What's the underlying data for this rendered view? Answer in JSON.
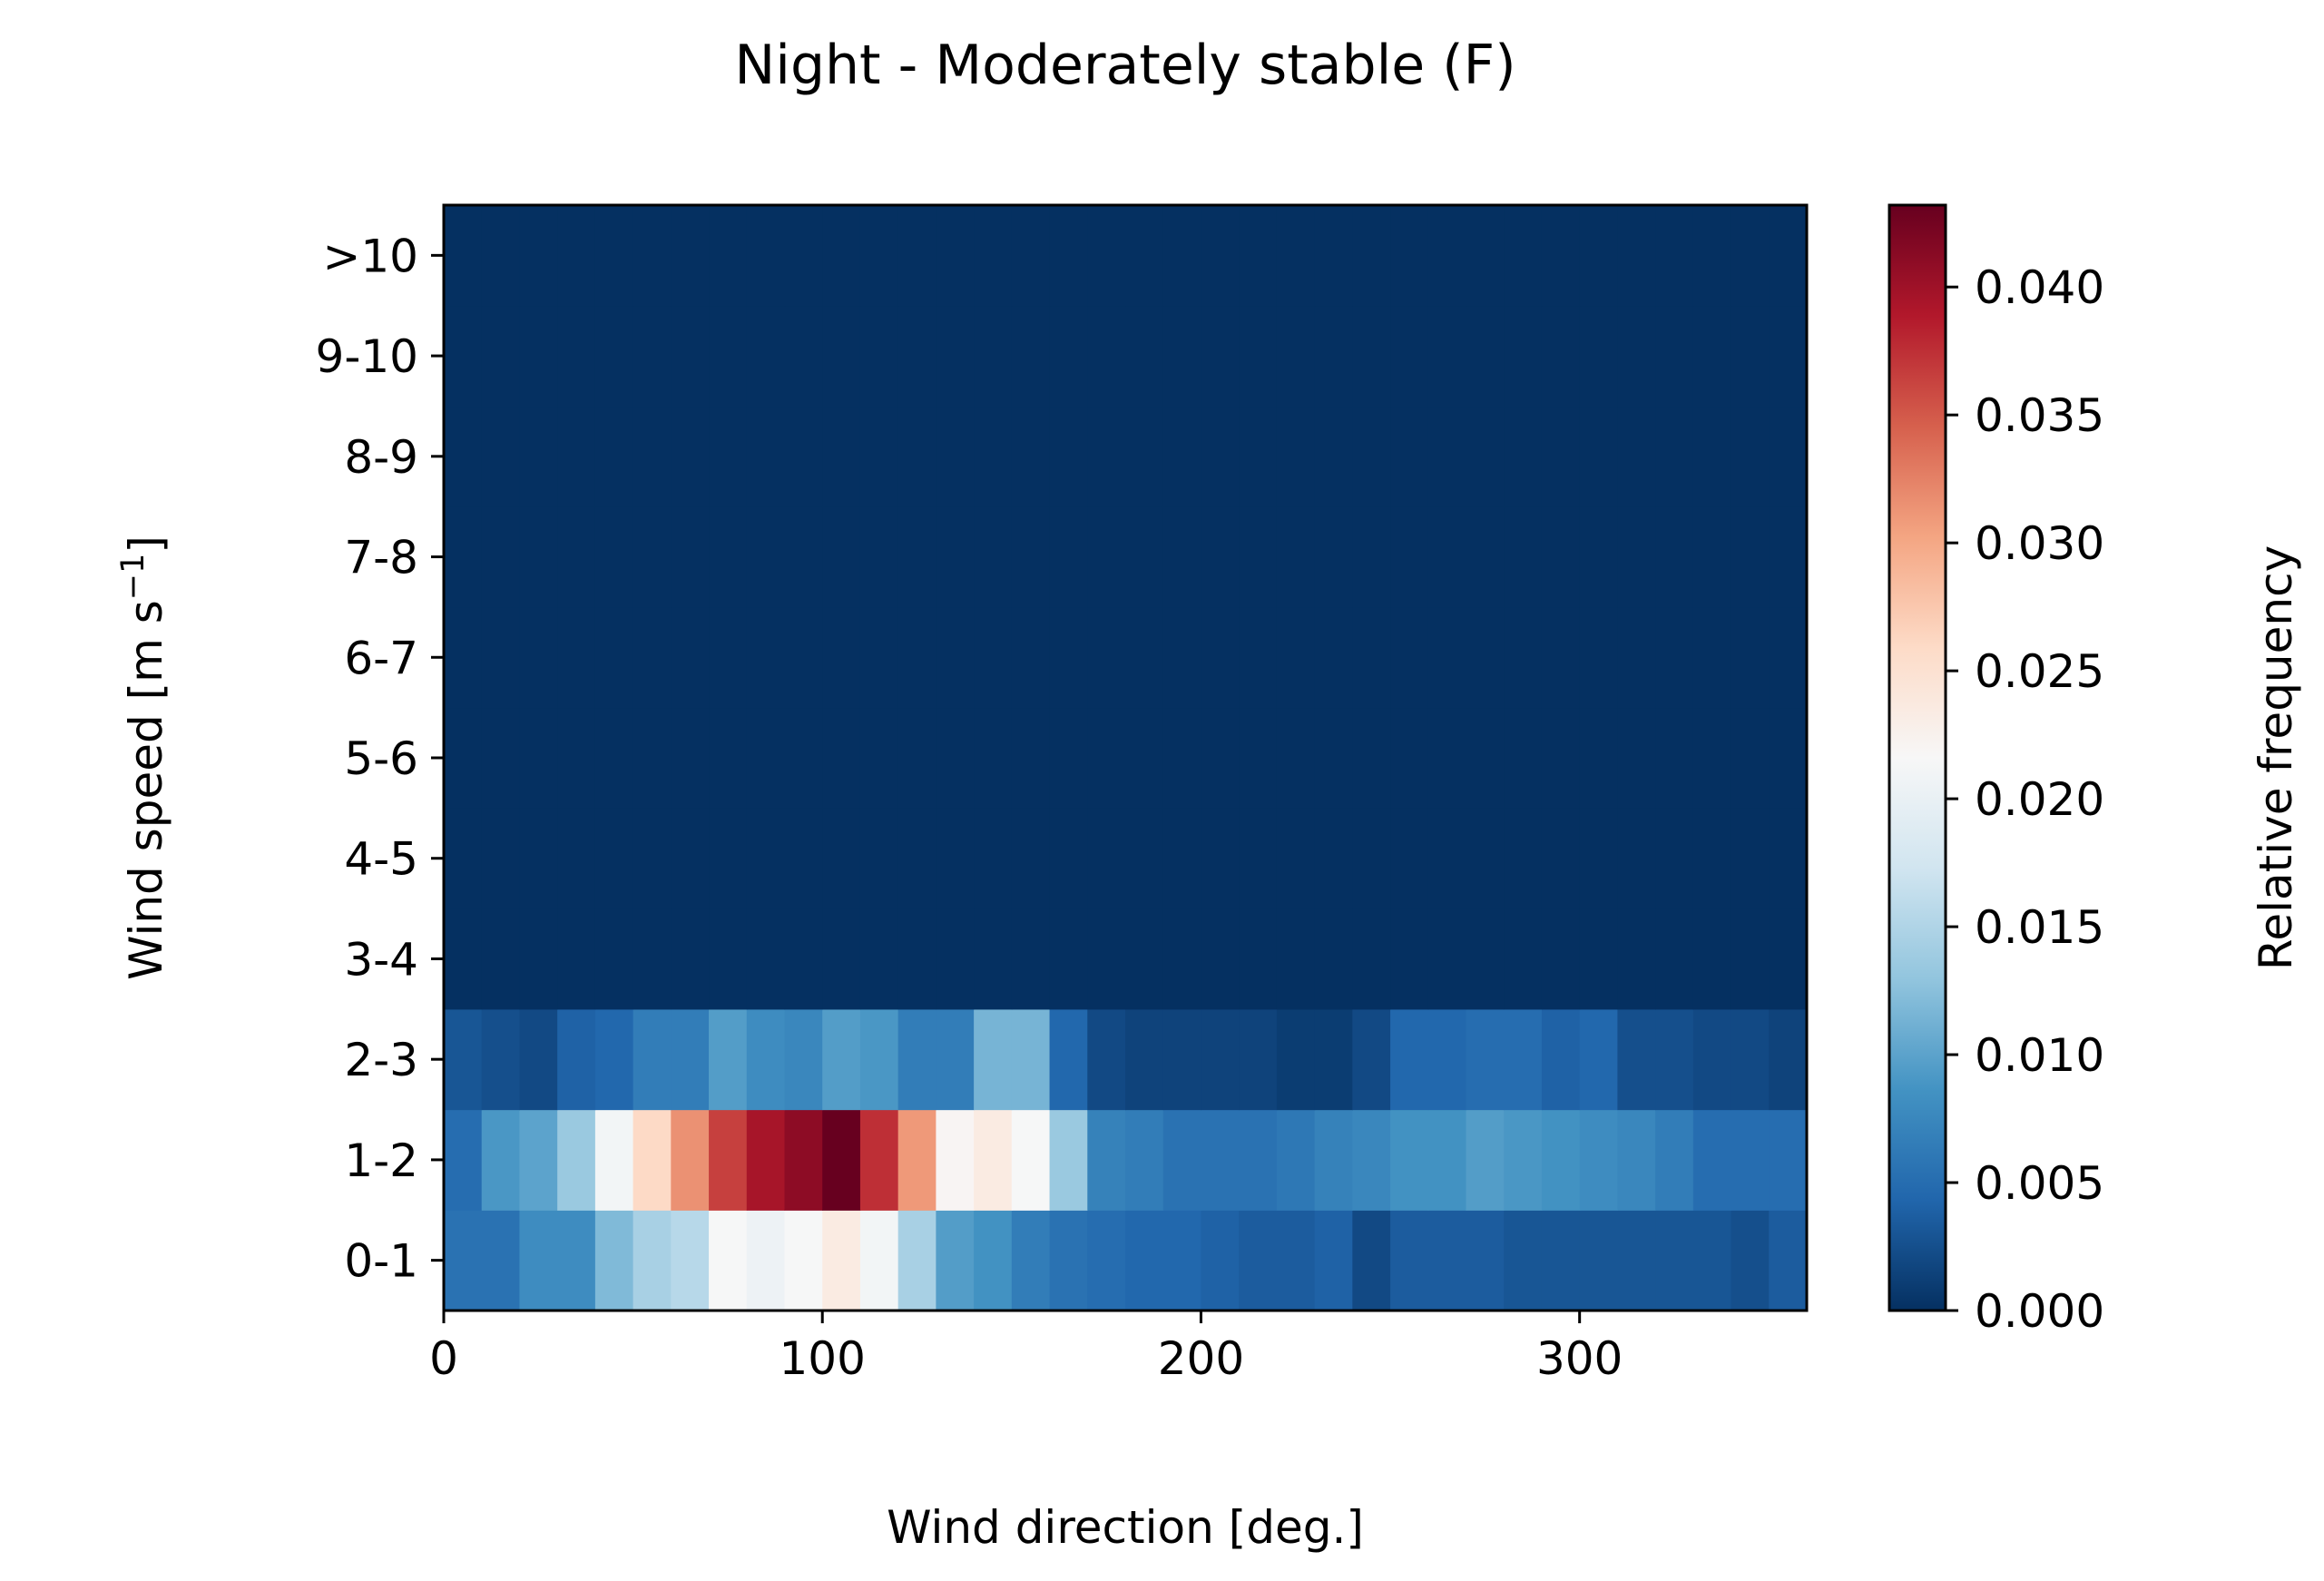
{
  "chart_data": {
    "type": "heatmap",
    "title": "Night - Moderately stable (F)",
    "xlabel": "Wind direction [deg.]",
    "ylabel": "Wind speed [m s^-1]",
    "ylabel_parts": {
      "pre": "Wind speed [m s",
      "sup": "−1",
      "post": "]"
    },
    "colorbar_label": "Relative frequency",
    "colormap": "RdBu_r",
    "colormap_stops": [
      "#053061",
      "#2166ac",
      "#4393c3",
      "#92c5de",
      "#d1e5f0",
      "#f7f7f7",
      "#fddbc7",
      "#f4a582",
      "#d6604d",
      "#b2182b",
      "#67001f"
    ],
    "vmin": 0.0,
    "vmax": 0.0432,
    "xlim": [
      0,
      360
    ],
    "x_bin_width": 10,
    "x_ticks": [
      0,
      100,
      200,
      300
    ],
    "y_categories": [
      "0-1",
      "1-2",
      "2-3",
      "3-4",
      "4-5",
      "5-6",
      "6-7",
      "7-8",
      "8-9",
      "9-10",
      ">10"
    ],
    "colorbar_ticks": [
      "0.000",
      "0.005",
      "0.010",
      "0.015",
      "0.020",
      "0.025",
      "0.030",
      "0.035",
      "0.040"
    ],
    "values": [
      [
        0.0055,
        0.0055,
        0.008,
        0.008,
        0.012,
        0.0145,
        0.0155,
        0.0215,
        0.0205,
        0.0215,
        0.0235,
        0.021,
        0.0145,
        0.0095,
        0.0085,
        0.0065,
        0.0055,
        0.005,
        0.0045,
        0.0045,
        0.004,
        0.0035,
        0.0035,
        0.004,
        0.002,
        0.0035,
        0.0035,
        0.0035,
        0.003,
        0.003,
        0.003,
        0.003,
        0.003,
        0.003,
        0.0025,
        0.0035
      ],
      [
        0.005,
        0.009,
        0.01,
        0.0135,
        0.021,
        0.026,
        0.0315,
        0.0365,
        0.0395,
        0.041,
        0.0432,
        0.0375,
        0.031,
        0.022,
        0.0235,
        0.0215,
        0.0135,
        0.007,
        0.0065,
        0.0055,
        0.0055,
        0.0055,
        0.006,
        0.007,
        0.0075,
        0.0085,
        0.0085,
        0.0095,
        0.009,
        0.0085,
        0.008,
        0.0075,
        0.0065,
        0.005,
        0.005,
        0.005
      ],
      [
        0.003,
        0.0025,
        0.002,
        0.004,
        0.0045,
        0.0065,
        0.0065,
        0.0095,
        0.008,
        0.0075,
        0.0095,
        0.009,
        0.0065,
        0.0065,
        0.0115,
        0.0115,
        0.0045,
        0.002,
        0.0015,
        0.0015,
        0.0015,
        0.0015,
        0.001,
        0.001,
        0.002,
        0.0045,
        0.0045,
        0.005,
        0.005,
        0.004,
        0.0045,
        0.0025,
        0.0025,
        0.002,
        0.002,
        0.0015
      ],
      [
        0,
        0,
        0,
        0,
        0,
        0,
        0,
        0,
        0,
        0,
        0,
        0,
        0,
        0,
        0,
        0,
        0,
        0,
        0,
        0,
        0,
        0,
        0,
        0,
        0,
        0,
        0,
        0,
        0,
        0,
        0,
        0,
        0,
        0,
        0,
        0
      ],
      [
        0,
        0,
        0,
        0,
        0,
        0,
        0,
        0,
        0,
        0,
        0,
        0,
        0,
        0,
        0,
        0,
        0,
        0,
        0,
        0,
        0,
        0,
        0,
        0,
        0,
        0,
        0,
        0,
        0,
        0,
        0,
        0,
        0,
        0,
        0,
        0
      ],
      [
        0,
        0,
        0,
        0,
        0,
        0,
        0,
        0,
        0,
        0,
        0,
        0,
        0,
        0,
        0,
        0,
        0,
        0,
        0,
        0,
        0,
        0,
        0,
        0,
        0,
        0,
        0,
        0,
        0,
        0,
        0,
        0,
        0,
        0,
        0,
        0
      ],
      [
        0,
        0,
        0,
        0,
        0,
        0,
        0,
        0,
        0,
        0,
        0,
        0,
        0,
        0,
        0,
        0,
        0,
        0,
        0,
        0,
        0,
        0,
        0,
        0,
        0,
        0,
        0,
        0,
        0,
        0,
        0,
        0,
        0,
        0,
        0,
        0
      ],
      [
        0,
        0,
        0,
        0,
        0,
        0,
        0,
        0,
        0,
        0,
        0,
        0,
        0,
        0,
        0,
        0,
        0,
        0,
        0,
        0,
        0,
        0,
        0,
        0,
        0,
        0,
        0,
        0,
        0,
        0,
        0,
        0,
        0,
        0,
        0,
        0
      ],
      [
        0,
        0,
        0,
        0,
        0,
        0,
        0,
        0,
        0,
        0,
        0,
        0,
        0,
        0,
        0,
        0,
        0,
        0,
        0,
        0,
        0,
        0,
        0,
        0,
        0,
        0,
        0,
        0,
        0,
        0,
        0,
        0,
        0,
        0,
        0,
        0
      ],
      [
        0,
        0,
        0,
        0,
        0,
        0,
        0,
        0,
        0,
        0,
        0,
        0,
        0,
        0,
        0,
        0,
        0,
        0,
        0,
        0,
        0,
        0,
        0,
        0,
        0,
        0,
        0,
        0,
        0,
        0,
        0,
        0,
        0,
        0,
        0,
        0
      ],
      [
        0,
        0,
        0,
        0,
        0,
        0,
        0,
        0,
        0,
        0,
        0,
        0,
        0,
        0,
        0,
        0,
        0,
        0,
        0,
        0,
        0,
        0,
        0,
        0,
        0,
        0,
        0,
        0,
        0,
        0,
        0,
        0,
        0,
        0,
        0,
        0
      ]
    ]
  }
}
